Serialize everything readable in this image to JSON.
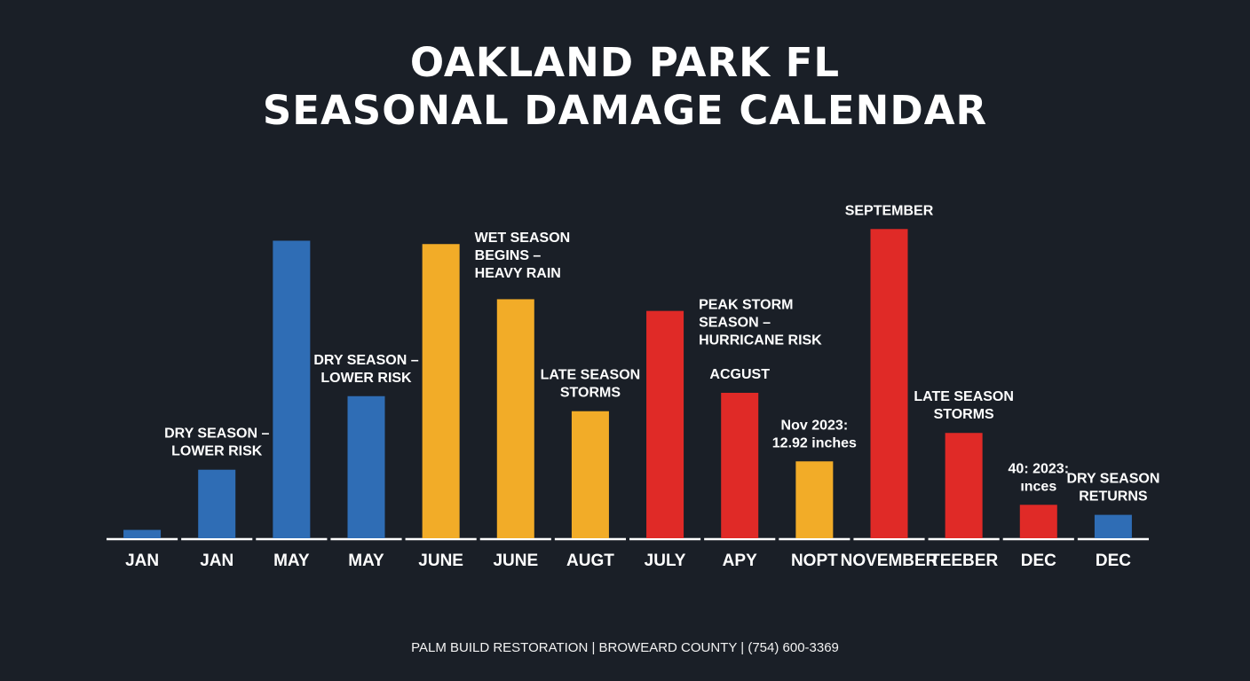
{
  "title_lines": [
    "OAKLAND PARK FL",
    "SEASONAL DAMAGE CALENDAR"
  ],
  "footer": "PALM BUILD RESTORATION | BROWEARD COUNTY | (754) 600-3369",
  "colors": {
    "background": "#1a1f27",
    "blue": "#2f6db5",
    "yellow": "#f2ac28",
    "red": "#e02a27",
    "axis": "#ffffff"
  },
  "chart_data": {
    "type": "bar",
    "title": "OAKLAND PARK FL SEASONAL DAMAGE CALENDAR",
    "xlabel": "",
    "ylabel": "",
    "grid": false,
    "categories": [
      "JAN",
      "JAN",
      "MAY",
      "MAY",
      "JUNE",
      "JUNE",
      "AUGT",
      "JULY",
      "APY",
      "NOPT",
      "NOVEMBER",
      "TEEBER",
      "DEC",
      "DEC"
    ],
    "values": [
      2.5,
      20.5,
      89,
      42.5,
      88,
      71.5,
      38,
      68,
      43.5,
      23,
      92.5,
      31.5,
      10,
      7
    ],
    "bar_colors": [
      "blue",
      "blue",
      "blue",
      "blue",
      "yellow",
      "yellow",
      "yellow",
      "red",
      "red",
      "yellow",
      "red",
      "red",
      "red",
      "blue"
    ],
    "ylim": [
      0,
      100
    ],
    "annotations": [
      {
        "bar": 1,
        "lines": [
          "DRY SEASON –",
          "LOWER RISK"
        ],
        "align": "middle"
      },
      {
        "bar": 3,
        "lines": [
          "DRY SEASON –",
          "LOWER RISK"
        ],
        "align": "middle"
      },
      {
        "bar": 4,
        "lines": [
          "WET SEASON",
          "BEGINS –",
          "HEAVY RAIN"
        ],
        "align": "start"
      },
      {
        "bar": 6,
        "lines": [
          "LATE SEASON",
          "STORMS"
        ],
        "align": "middle"
      },
      {
        "bar": 7,
        "lines": [
          "PEAK STORM",
          "SEASON –",
          "HURRICANE RISK"
        ],
        "align": "start"
      },
      {
        "bar": 8,
        "lines": [
          "ACGUST"
        ],
        "align": "middle"
      },
      {
        "bar": 9,
        "lines": [
          "Nov 2023:",
          "12.92 inches"
        ],
        "align": "middle"
      },
      {
        "bar": 10,
        "lines": [
          "SEPTEMBER"
        ],
        "align": "middle"
      },
      {
        "bar": 11,
        "lines": [
          "LATE SEASON",
          "STORMS"
        ],
        "align": "middle"
      },
      {
        "bar": 12,
        "lines": [
          "40: 2023:",
          "ınces"
        ],
        "align": "middle"
      },
      {
        "bar": 13,
        "lines": [
          "DRY SEASON",
          "RETURNS"
        ],
        "align": "middle"
      }
    ]
  }
}
